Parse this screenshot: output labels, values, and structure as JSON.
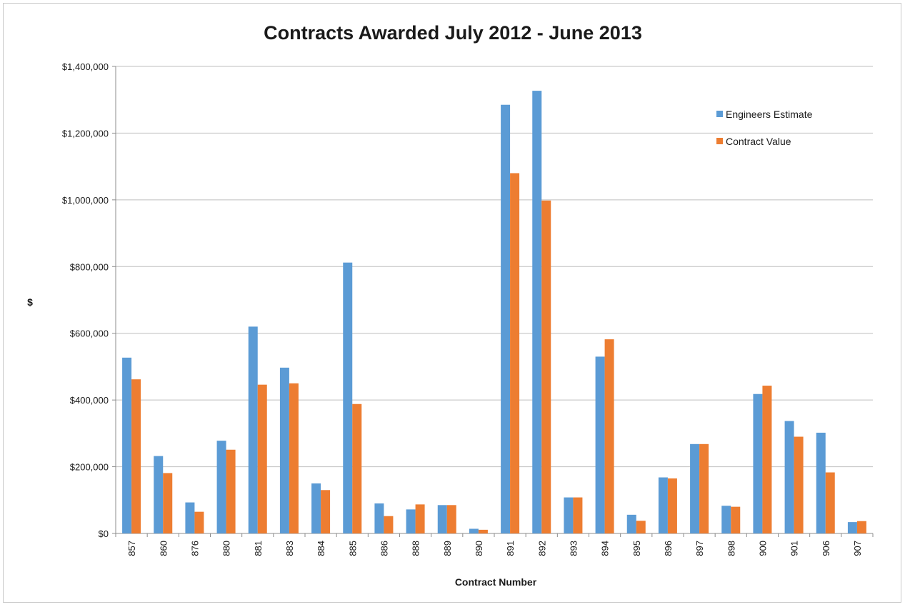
{
  "chart_data": {
    "type": "bar",
    "title": "Contracts Awarded July 2012 - June 2013",
    "xlabel": "Contract Number",
    "ylabel": "$",
    "ylim": [
      0,
      1400000
    ],
    "ytick_values": [
      0,
      200000,
      400000,
      600000,
      800000,
      1000000,
      1200000,
      1400000
    ],
    "ytick_labels": [
      "$0",
      "$200,000",
      "$400,000",
      "$600,000",
      "$800,000",
      "$1,000,000",
      "$1,200,000",
      "$1,400,000"
    ],
    "grid": true,
    "legend_position": "top-right",
    "categories": [
      "857",
      "860",
      "876",
      "880",
      "881",
      "883",
      "884",
      "885",
      "886",
      "888",
      "889",
      "890",
      "891",
      "892",
      "893",
      "894",
      "895",
      "896",
      "897",
      "898",
      "900",
      "901",
      "906",
      "907"
    ],
    "series": [
      {
        "name": "Engineers Estimate",
        "color": "#5b9bd5",
        "values": [
          527000,
          232000,
          93000,
          278000,
          620000,
          497000,
          150000,
          812000,
          90000,
          72000,
          85000,
          14000,
          1285000,
          1327000,
          108000,
          530000,
          56000,
          168000,
          268000,
          83000,
          418000,
          337000,
          302000,
          34000
        ]
      },
      {
        "name": "Contract Value",
        "color": "#ed7d31",
        "values": [
          462000,
          181000,
          65000,
          251000,
          446000,
          450000,
          130000,
          388000,
          52000,
          87000,
          85000,
          11000,
          1080000,
          998000,
          108000,
          582000,
          38000,
          165000,
          268000,
          80000,
          443000,
          290000,
          183000,
          37000
        ]
      }
    ]
  }
}
